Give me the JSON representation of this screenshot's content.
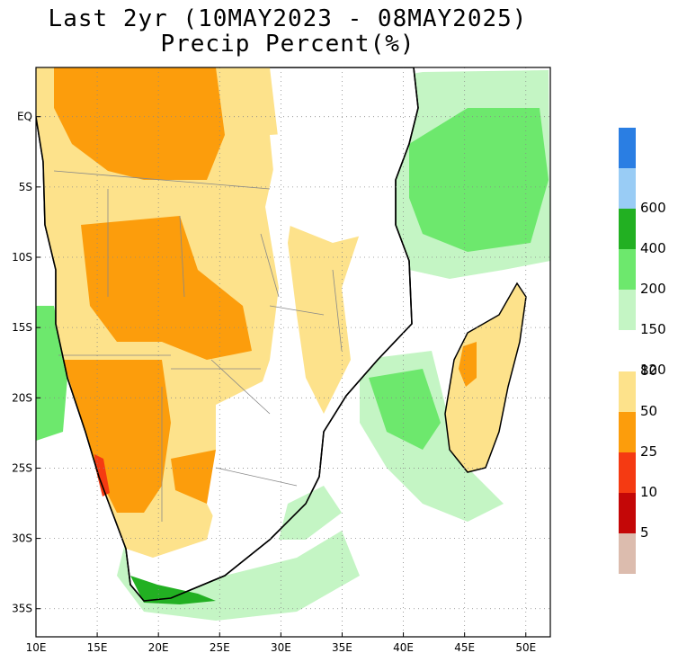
{
  "title": {
    "line1": "Last 2yr (10MAY2023 - 08MAY2025)",
    "line2": "Precip Percent(%)"
  },
  "map": {
    "lon_range": [
      10,
      52
    ],
    "lat_range": [
      -37,
      3.5
    ],
    "x_ticks": [
      {
        "value": 10,
        "label": "10E"
      },
      {
        "value": 15,
        "label": "15E"
      },
      {
        "value": 20,
        "label": "20E"
      },
      {
        "value": 25,
        "label": "25E"
      },
      {
        "value": 30,
        "label": "30E"
      },
      {
        "value": 35,
        "label": "35E"
      },
      {
        "value": 40,
        "label": "40E"
      },
      {
        "value": 45,
        "label": "45E"
      },
      {
        "value": 50,
        "label": "50E"
      }
    ],
    "y_ticks": [
      {
        "value": 0,
        "label": "EQ"
      },
      {
        "value": -5,
        "label": "5S"
      },
      {
        "value": -10,
        "label": "10S"
      },
      {
        "value": -15,
        "label": "15S"
      },
      {
        "value": -20,
        "label": "20S"
      },
      {
        "value": -25,
        "label": "25S"
      },
      {
        "value": -30,
        "label": "30S"
      },
      {
        "value": -35,
        "label": "35S"
      }
    ],
    "grid": "dotted"
  },
  "legend": {
    "upper": [
      {
        "color": "#2a7ee3",
        "label": ""
      },
      {
        "color": "#99ccf5",
        "label": "600"
      },
      {
        "color": "#22b022",
        "label": "400"
      },
      {
        "color": "#6de86d",
        "label": "200"
      },
      {
        "color": "#c4f5c4",
        "label": "150"
      },
      {
        "color": "#ffffff",
        "label": "120"
      }
    ],
    "lower": [
      {
        "color": "#ffffff",
        "label": "80"
      },
      {
        "color": "#fde28b",
        "label": "50"
      },
      {
        "color": "#fc9d0c",
        "label": "25"
      },
      {
        "color": "#f53a12",
        "label": "10"
      },
      {
        "color": "#c40707",
        "label": "5"
      },
      {
        "color": "#dcbcae",
        "label": ""
      }
    ]
  },
  "colors": {
    "dry_light": "#fde28b",
    "dry_mid": "#fc9d0c",
    "dry_strong": "#f53a12",
    "wet_light": "#c4f5c4",
    "wet_mid": "#6de86d",
    "wet_strong": "#22b022"
  }
}
